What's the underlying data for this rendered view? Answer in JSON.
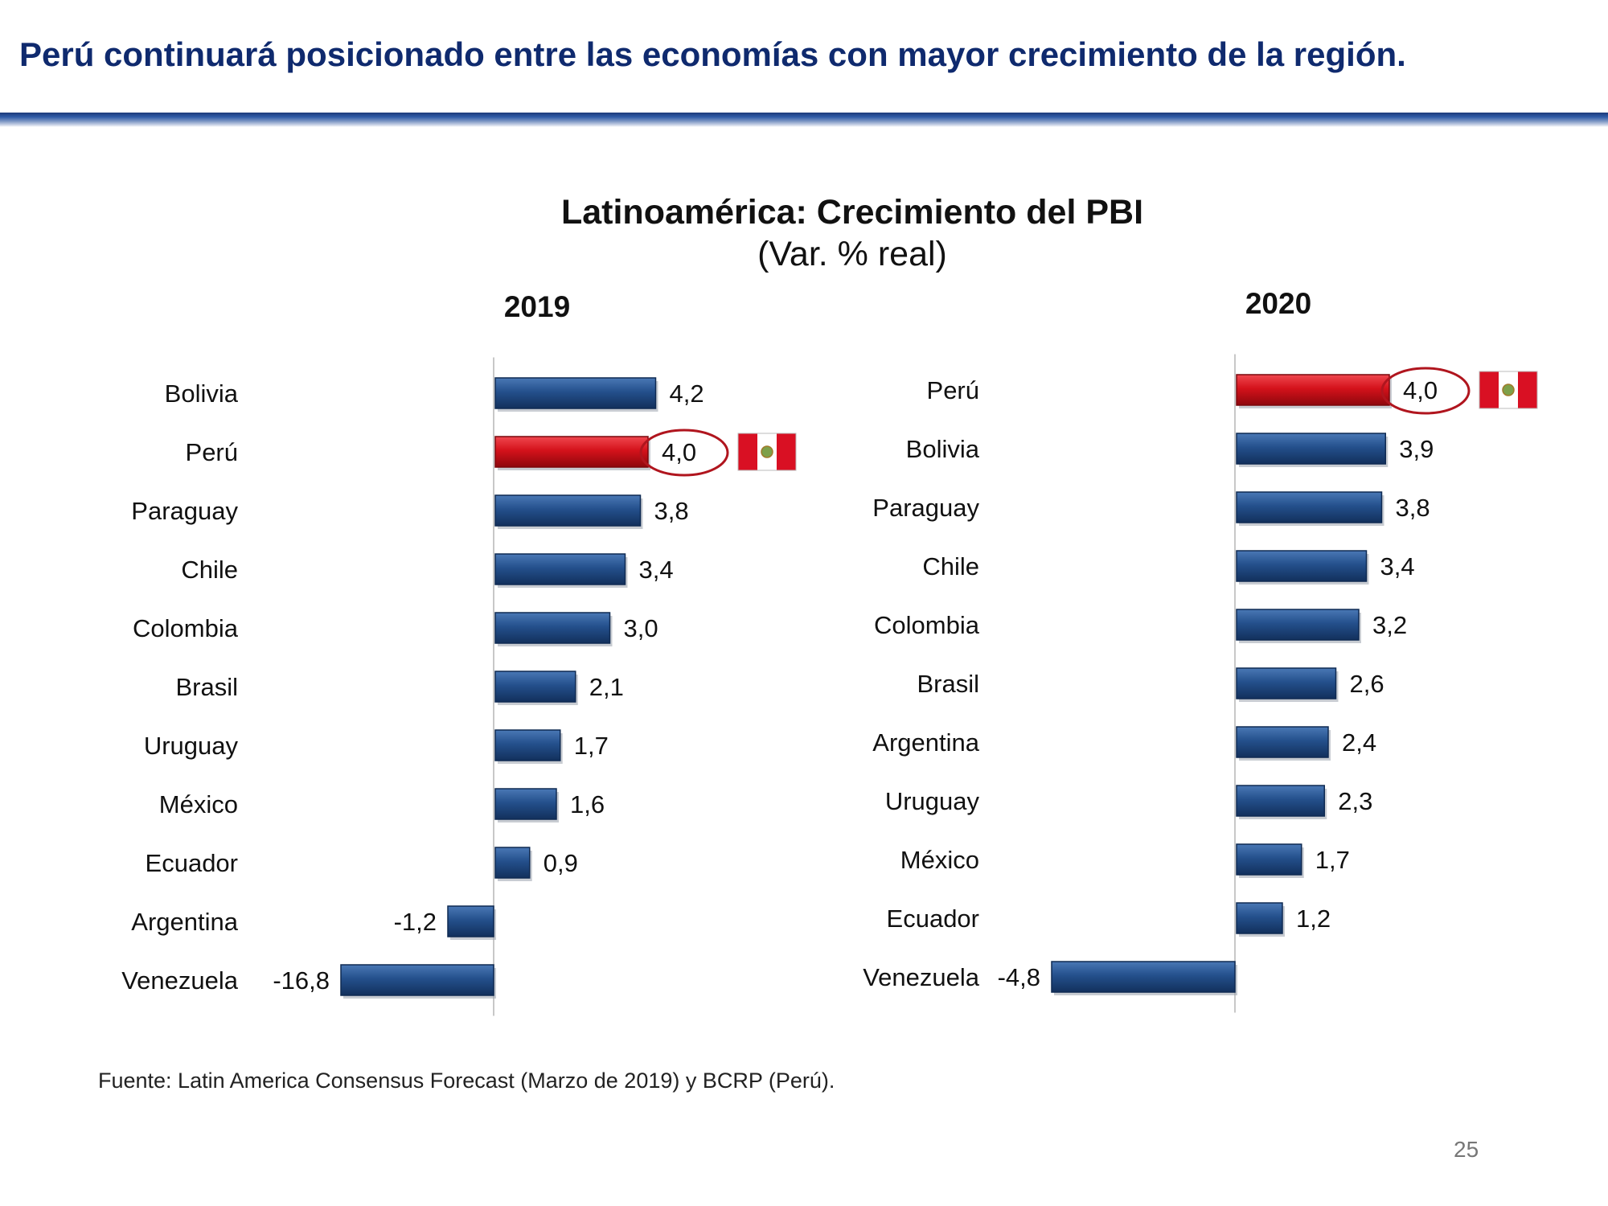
{
  "slide": {
    "title": "Perú continuará posicionado entre las economías con mayor crecimiento de la región.",
    "source": "Fuente: Latin America Consensus Forecast (Marzo de 2019) y BCRP (Perú).",
    "page_number": "25"
  },
  "colors": {
    "title": "#0f2a6e",
    "bar_blue": "#24508c",
    "bar_red": "#d4121b",
    "highlight_circle": "#b0151e",
    "flag_red": "#d91023",
    "flag_white": "#ffffff"
  },
  "chart_data": [
    {
      "type": "bar",
      "orientation": "horizontal",
      "title": "Latinoamérica: Crecimiento del PBI",
      "subtitle": "(Var. % real)",
      "panel_label": "2019",
      "categories": [
        "Bolivia",
        "Perú",
        "Paraguay",
        "Chile",
        "Colombia",
        "Brasil",
        "Uruguay",
        "México",
        "Ecuador",
        "Argentina",
        "Venezuela"
      ],
      "values": [
        4.2,
        4.0,
        3.8,
        3.4,
        3.0,
        2.1,
        1.7,
        1.6,
        0.9,
        -1.2,
        -16.8
      ],
      "value_labels": [
        "4,2",
        "4,0",
        "3,8",
        "3,4",
        "3,0",
        "2,1",
        "1,7",
        "1,6",
        "0,9",
        "-1,2",
        "-16,8"
      ],
      "highlight": "Perú",
      "highlight_icon": "peru-flag-icon",
      "xlim": [
        -4,
        8.4
      ],
      "note": "Venezuela bar truncated (broken axis)"
    },
    {
      "type": "bar",
      "orientation": "horizontal",
      "panel_label": "2020",
      "categories": [
        "Perú",
        "Bolivia",
        "Paraguay",
        "Chile",
        "Colombia",
        "Brasil",
        "Argentina",
        "Uruguay",
        "México",
        "Ecuador",
        "Venezuela"
      ],
      "values": [
        4.0,
        3.9,
        3.8,
        3.4,
        3.2,
        2.6,
        2.4,
        2.3,
        1.7,
        1.2,
        -4.8
      ],
      "value_labels": [
        "4,0",
        "3,9",
        "3,8",
        "3,4",
        "3,2",
        "2,6",
        "2,4",
        "2,3",
        "1,7",
        "1,2",
        "-4,8"
      ],
      "highlight": "Perú",
      "highlight_icon": "peru-flag-icon",
      "xlim": [
        -4.8,
        8.4
      ]
    }
  ]
}
